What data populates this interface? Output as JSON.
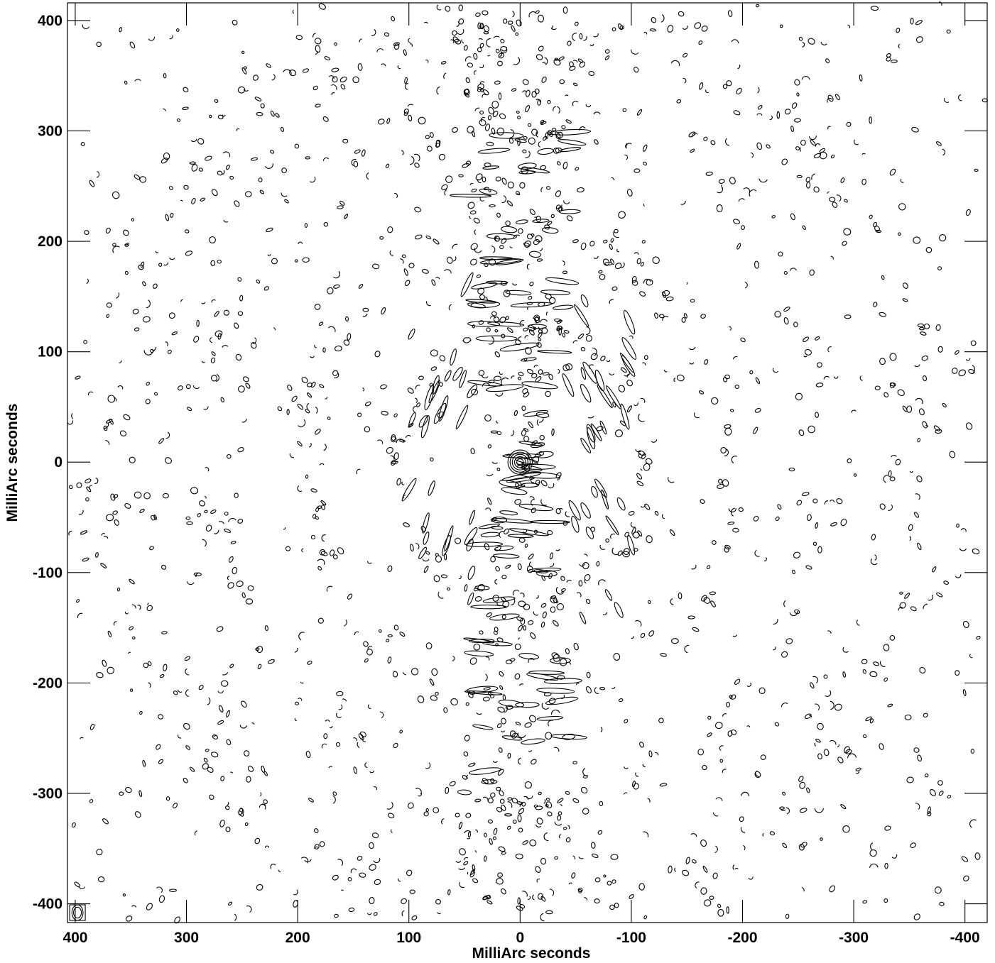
{
  "chart_data": {
    "type": "contour",
    "xlabel": "MilliArc seconds",
    "ylabel": "MilliArc seconds",
    "xlim": [
      407,
      -420
    ],
    "ylim": [
      -417,
      416
    ],
    "x_ticks": [
      400,
      300,
      200,
      100,
      0,
      -100,
      -200,
      -300,
      -400
    ],
    "x_tick_labels": [
      "400",
      "300",
      "200",
      "100",
      "0",
      "-100",
      "-200",
      "-300",
      "-400"
    ],
    "y_ticks": [
      400,
      300,
      200,
      100,
      0,
      -100,
      -200,
      -300,
      -400
    ],
    "y_tick_labels": [
      "400",
      "300",
      "200",
      "100",
      "0",
      "-100",
      "-200",
      "-300",
      "-400"
    ],
    "peak": {
      "x": 0,
      "y": 0
    },
    "peak_contour_radii_mas": [
      3,
      5,
      7,
      9,
      11
    ],
    "beam": {
      "x": 398,
      "y": -408,
      "major_mas": 7,
      "minor_mas": 5
    },
    "structure": {
      "central_ridge_halfwidth_mas": 55,
      "ring_radii_mas": [
        120,
        200,
        300
      ],
      "outer_ring_radii_mas": [
        370,
        410
      ],
      "contour_color": "#000000"
    },
    "grid": false,
    "legend": "none"
  }
}
